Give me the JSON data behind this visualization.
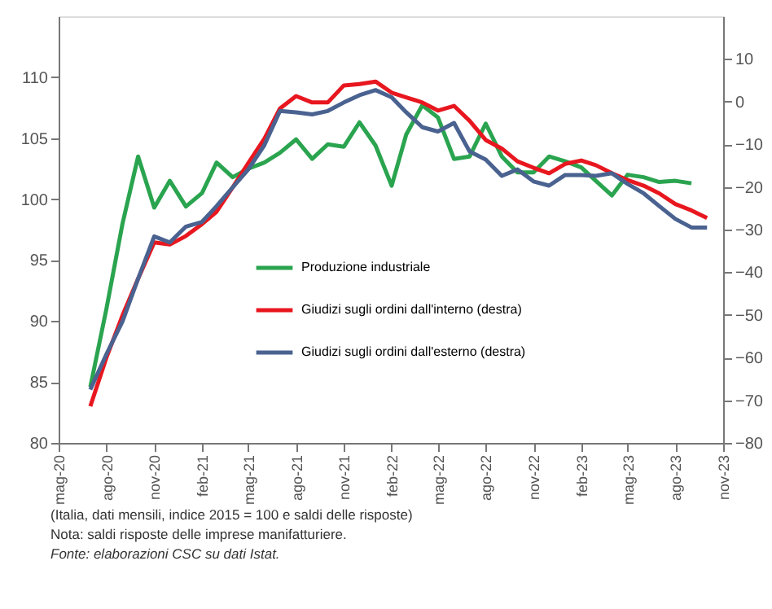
{
  "chart_data": {
    "type": "line",
    "x": [
      "2020-07",
      "2020-08",
      "2020-09",
      "2020-10",
      "2020-11",
      "2020-12",
      "2021-01",
      "2021-02",
      "2021-03",
      "2021-04",
      "2021-05",
      "2021-06",
      "2021-07",
      "2021-08",
      "2021-09",
      "2021-10",
      "2021-11",
      "2021-12",
      "2022-01",
      "2022-02",
      "2022-03",
      "2022-04",
      "2022-05",
      "2022-06",
      "2022-07",
      "2022-08",
      "2022-09",
      "2022-10",
      "2022-11",
      "2022-12",
      "2023-01",
      "2023-02",
      "2023-03",
      "2023-04",
      "2023-05",
      "2023-06",
      "2023-07",
      "2023-08",
      "2023-09",
      "2023-10"
    ],
    "series": [
      {
        "name": "Produzione industriale",
        "color": "#2aa44f",
        "values": [
          84.6,
          91.0,
          98.0,
          103.5,
          99.3,
          101.5,
          99.4,
          100.5,
          103.0,
          101.8,
          102.5,
          103.0,
          103.8,
          104.9,
          103.3,
          104.5,
          104.3,
          106.3,
          104.4,
          101.1,
          105.3,
          107.7,
          106.7,
          103.3,
          103.5,
          106.2,
          103.5,
          102.2,
          102.2,
          103.5,
          103.1,
          102.6,
          101.5,
          100.3,
          102.0,
          101.8,
          101.4,
          101.5,
          101.3,
          null
        ]
      },
      {
        "name": "Giudizi sugli ordini dall'interno (destra)",
        "color": "#e8171f",
        "axis": "y2",
        "values": [
          -71.4,
          -60.0,
          -50.1,
          -41.5,
          -33.0,
          -33.5,
          -31.5,
          -28.7,
          -25.8,
          -20.1,
          -14.4,
          -8.7,
          -1.6,
          1.3,
          -0.2,
          -0.2,
          3.8,
          4.1,
          4.7,
          2.1,
          1.0,
          -0.2,
          -2.1,
          -1.0,
          -4.5,
          -9.0,
          -11.0,
          -14.0,
          -15.5,
          -16.8,
          -14.6,
          -13.8,
          -14.9,
          -16.8,
          -18.4,
          -19.7,
          -21.5,
          -24.0,
          -25.5,
          -27.3
        ]
      },
      {
        "name": "Giudizi sugli ordini dall'esterno (destra)",
        "color": "#4a6290",
        "axis": "y2",
        "values": [
          -67.5,
          -59.2,
          -51.5,
          -41.5,
          -31.6,
          -33.0,
          -29.3,
          -28.2,
          -24.5,
          -20.1,
          -15.9,
          -10.2,
          -2.2,
          -2.5,
          -3.0,
          -2.2,
          -0.2,
          1.5,
          2.7,
          1.0,
          -2.5,
          -6.0,
          -7.0,
          -5.0,
          -11.7,
          -13.6,
          -17.4,
          -15.9,
          -18.7,
          -19.7,
          -17.2,
          -17.2,
          -17.4,
          -16.8,
          -19.3,
          -21.5,
          -24.5,
          -27.5,
          -29.5,
          -29.5
        ]
      }
    ],
    "xlim": [
      "2020-05",
      "2023-11"
    ],
    "xticks": [
      {
        "value": "2020-05",
        "label": "mag-20"
      },
      {
        "value": "2020-08",
        "label": "ago-20"
      },
      {
        "value": "2020-11",
        "label": "nov-20"
      },
      {
        "value": "2021-02",
        "label": "feb-21"
      },
      {
        "value": "2021-05",
        "label": "mag-21"
      },
      {
        "value": "2021-08",
        "label": "ago-21"
      },
      {
        "value": "2021-11",
        "label": "nov-21"
      },
      {
        "value": "2022-02",
        "label": "feb-22"
      },
      {
        "value": "2022-05",
        "label": "mag-22"
      },
      {
        "value": "2022-08",
        "label": "ago-22"
      },
      {
        "value": "2022-11",
        "label": "nov-22"
      },
      {
        "value": "2023-02",
        "label": "feb-23"
      },
      {
        "value": "2023-05",
        "label": "mag-23"
      },
      {
        "value": "2023-08",
        "label": "ago-23"
      },
      {
        "value": "2023-11",
        "label": "nov-23"
      }
    ],
    "ylim": [
      80,
      115
    ],
    "yticks": [
      80,
      85,
      90,
      95,
      100,
      105,
      110
    ],
    "y2lim": [
      -80,
      20
    ],
    "y2ticks": [
      -80,
      -70,
      -60,
      -50,
      -40,
      -30,
      -20,
      -10,
      0,
      10
    ],
    "legend": "bottom",
    "grid": false,
    "annotations": [
      "(Italia, dati mensili, indice 2015 = 100 e saldi delle risposte)",
      "Nota: saldi risposte delle imprese manifatturiere.",
      "Fonte: elaborazioni CSC su dati Istat."
    ]
  }
}
